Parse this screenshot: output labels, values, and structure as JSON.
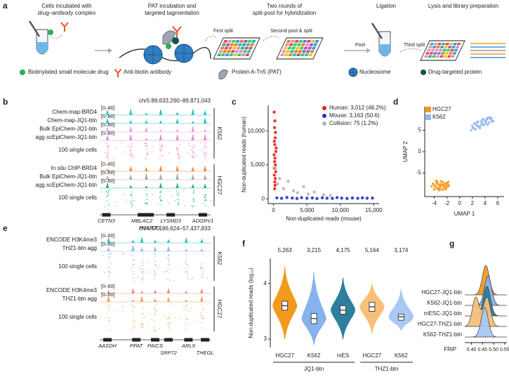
{
  "panel_labels": [
    "a",
    "b",
    "c",
    "d",
    "e",
    "f",
    "g"
  ],
  "panel_a": {
    "steps": [
      [
        "Cells incubated with",
        "drug–antibody complex"
      ],
      [
        "PAT incubation and",
        "targeted tagmentation"
      ],
      [
        "Two rounds of",
        "split-pool for hybridization"
      ],
      [
        "Ligation"
      ],
      [
        "Lysis and library preparation"
      ]
    ],
    "annotations": [
      "First split",
      "Second pool & split",
      "Pool",
      "Third split"
    ],
    "legend": [
      "Biotinylated small molecule drug",
      "Anti-biotin antibody",
      "Protein A-Tn5 (PAT)",
      "Nucleosome",
      "Drug-targeted protein"
    ]
  },
  "panel_b": {
    "locus": "chr5:89,633,290–89,871,043",
    "groups": [
      {
        "name": "K562",
        "tracks": [
          {
            "name": "Chem-map-BRD4",
            "range": "[0–80]",
            "color": "#2ec4c6"
          },
          {
            "name": "Chem-map-JQ1-btn",
            "range": "[0–80]",
            "color": "#2ec4c6"
          },
          {
            "name": "Bulk EpiChem-JQ1-btn",
            "range": "[0–80]",
            "color": "#e9a3dc"
          },
          {
            "name": "agg scEpiChem-JQ1-btn",
            "range": "[0–80]",
            "color": "#e58fd0"
          },
          {
            "name": "100 single cells",
            "color": "#e070c0"
          }
        ]
      },
      {
        "name": "HGC27",
        "tracks": [
          {
            "name": "In situ ChIP-BRD4",
            "range": "[0–80]",
            "color": "#f0883c"
          },
          {
            "name": "Bulk EpiChem-JQ1-btn",
            "range": "[0–80]",
            "color": "#aaaaaa"
          },
          {
            "name": "agg scEpiChem-JQ1-btn",
            "range": "[0–80]",
            "color": "#2db39a"
          },
          {
            "name": "100 single cells",
            "color": "#2db39a"
          }
        ]
      }
    ],
    "genes": [
      "CETN3",
      "MBLAC2",
      "LYSMD3",
      "ADGRV1",
      "POLR3G"
    ]
  },
  "panel_e": {
    "locus": "chr4:57,186,624–57,437,833",
    "groups": [
      {
        "name": "K562",
        "tracks": [
          {
            "name": "ENCODE H3K4me3",
            "range": "[0–60]",
            "color": "#2ec4c6"
          },
          {
            "name": "THZ1-btn agg",
            "range": "[0–60]",
            "color": "#9ab8f0"
          },
          {
            "name": "100 single cells",
            "color": "#7f9fe8"
          }
        ]
      },
      {
        "name": "HGC27",
        "tracks": [
          {
            "name": "ENCODE H3K4me3",
            "range": "[0–60]",
            "color": "#f08a8a"
          },
          {
            "name": "THZ1-btn agg",
            "range": "[0–60]",
            "color": "#f5a35a"
          },
          {
            "name": "100 single cells",
            "color": "#f0a050"
          }
        ]
      }
    ],
    "genes": [
      "AASDH",
      "PPAT",
      "PAICS",
      "SRP72",
      "ARL9",
      "THEGL"
    ]
  },
  "chart_data": [
    {
      "type": "scatter",
      "xlabel": "Non-duplicated reads (mouse)",
      "ylabel": "Non-duplicated reads (human)",
      "xlim": [
        -800,
        15800
      ],
      "ylim": [
        -700,
        13800
      ],
      "xticks": [
        0,
        {
          "value": 5000,
          "label": "5,000"
        },
        {
          "value": 10000,
          "label": "10,000"
        },
        {
          "value": 15000,
          "label": "15,000"
        }
      ],
      "yticks": [
        0,
        {
          "value": 5000,
          "label": "5,000"
        },
        {
          "value": 10000,
          "label": "10,000"
        }
      ],
      "legend": "upper right",
      "series": [
        {
          "name": "Human: 3,012 (48.2%)",
          "color": "#e8211e",
          "x": [
            100,
            200,
            150,
            300,
            250,
            120,
            180,
            400,
            350,
            90,
            220,
            160,
            280,
            140,
            330,
            110,
            260,
            190,
            230,
            170
          ],
          "values": [
            12800,
            11500,
            10500,
            9800,
            9000,
            8500,
            8000,
            7500,
            7000,
            6500,
            6000,
            5500,
            5000,
            4500,
            4000,
            3500,
            3000,
            2500,
            2000,
            1500
          ]
        },
        {
          "name": "Mouse: 3,163 (50.6)",
          "color": "#1f2fd6",
          "x": [
            500,
            1200,
            2000,
            2800,
            3500,
            4200,
            5000,
            5800,
            6500,
            7300,
            8000,
            8800,
            9500,
            10200,
            11000,
            11800,
            12600,
            13300,
            14000,
            14800
          ],
          "values": [
            150,
            80,
            200,
            120,
            60,
            180,
            90,
            140,
            50,
            160,
            100,
            70,
            190,
            110,
            60,
            130,
            80,
            150,
            100,
            120
          ]
        },
        {
          "name": "Collision: 75 (1.2%)",
          "color": "#b5b5b5",
          "x": [
            300,
            600,
            900,
            1500,
            2200,
            3000,
            3600,
            4500,
            5200,
            6100,
            7500,
            8500
          ],
          "values": [
            4500,
            2200,
            3000,
            1500,
            2600,
            1200,
            900,
            1800,
            700,
            1000,
            600,
            500
          ]
        }
      ]
    },
    {
      "type": "scatter",
      "xlabel": "UMAP 1",
      "ylabel": "UMAP 2",
      "xlim": [
        -5.5,
        7
      ],
      "ylim": [
        -10.5,
        10.5
      ],
      "xticks": [
        -4,
        -2,
        0,
        2,
        4,
        6
      ],
      "yticks": [
        -5,
        0,
        5
      ],
      "legend": "upper left",
      "series": [
        {
          "name": "HGC27",
          "color": "#f39a1e",
          "x": [
            -4.2,
            -3.8,
            -3.5,
            -3.1,
            -2.8,
            -2.4,
            -2.0,
            -1.7,
            -4.0,
            -3.6,
            -3.2,
            -2.9,
            -2.5,
            -2.1,
            -1.8,
            -3.9,
            -3.4,
            -3.0,
            -2.6,
            -2.2,
            -4.4,
            -3.7,
            -3.3,
            -2.7,
            -2.3,
            -1.9,
            -3.5,
            -3.0,
            -2.5,
            -2.0
          ],
          "values": [
            -7.5,
            -8.2,
            -7.0,
            -8.6,
            -7.8,
            -8.0,
            -7.3,
            -7.9,
            -8.8,
            -7.4,
            -9.0,
            -6.9,
            -8.5,
            -8.3,
            -7.1,
            -7.9,
            -8.4,
            -7.6,
            -7.2,
            -8.8,
            -8.1,
            -6.8,
            -7.7,
            -8.9,
            -7.5,
            -8.2,
            -8.7,
            -8.1,
            -7.9,
            -7.6
          ]
        },
        {
          "name": "K562",
          "color": "#8fb8ec",
          "x": [
            1.8,
            2.2,
            2.6,
            3.0,
            3.4,
            3.8,
            4.2,
            4.6,
            5.0,
            5.3,
            2.0,
            2.5,
            2.9,
            3.3,
            3.7,
            4.1,
            4.5,
            4.9,
            2.3,
            2.8,
            3.2,
            3.6,
            4.0,
            4.4,
            4.8,
            2.1,
            2.7,
            3.5,
            4.3,
            5.1
          ],
          "values": [
            5.0,
            5.5,
            6.3,
            5.8,
            6.9,
            6.2,
            7.4,
            6.8,
            7.8,
            7.2,
            6.0,
            5.2,
            7.0,
            6.1,
            7.6,
            6.7,
            7.9,
            7.5,
            6.6,
            6.0,
            5.5,
            6.5,
            7.1,
            6.3,
            8.0,
            5.6,
            6.8,
            7.3,
            7.7,
            7.0
          ]
        }
      ]
    },
    {
      "type": "violin",
      "ylabel": "Non-duplicated reads (log₁₀)",
      "categories": [
        "HGC27",
        "K562",
        "mES",
        "HGC27",
        "K562"
      ],
      "groups": [
        "JQ1-btn",
        "JQ1-btn",
        "JQ1-btn",
        "THZ1-btn",
        "THZ1-btn"
      ],
      "colors": [
        "#f39a1e",
        "#86b2ee",
        "#2e7f9e",
        "#f7c07a",
        "#a9c8f2"
      ],
      "values": [
        5263,
        3215,
        4175,
        5164,
        3174
      ],
      "value_labels": [
        "5,263",
        "3,215",
        "4,175",
        "5,164",
        "3,174"
      ],
      "median": [
        3.6,
        3.37,
        3.52,
        3.58,
        3.4
      ],
      "q1": [
        3.52,
        3.28,
        3.45,
        3.5,
        3.34
      ],
      "q3": [
        3.68,
        3.46,
        3.6,
        3.66,
        3.45
      ],
      "min": [
        3.0,
        2.9,
        3.0,
        3.1,
        3.15
      ],
      "max": [
        4.3,
        4.2,
        4.1,
        4.0,
        3.9
      ],
      "ylim": [
        2.85,
        4.45
      ],
      "yticks": [
        3,
        4
      ]
    },
    {
      "type": "ridgeline",
      "xlabel": "FRiP",
      "categories": [
        "HGC27-JQ1-btn",
        "K562-JQ1-btn",
        "mESC-JQ1-btn",
        "HGC27-THZ1-btn",
        "K562-THZ1-btn"
      ],
      "colors": [
        "#f39a1e",
        "#86b2ee",
        "#2e7f9e",
        "#f7c07a",
        "#a9c8f2"
      ],
      "modes": [
        [
          0.465
        ],
        [
          0.475
        ],
        [
          0.47
        ],
        [
          0.42,
          0.47
        ],
        [
          0.46
        ]
      ],
      "xlim": [
        0.37,
        0.56
      ],
      "xticks": [
        {
          "value": 0.4,
          "label": "0.40"
        },
        0.45,
        {
          "value": 0.5,
          "label": "0.50"
        },
        0.55
      ]
    }
  ]
}
